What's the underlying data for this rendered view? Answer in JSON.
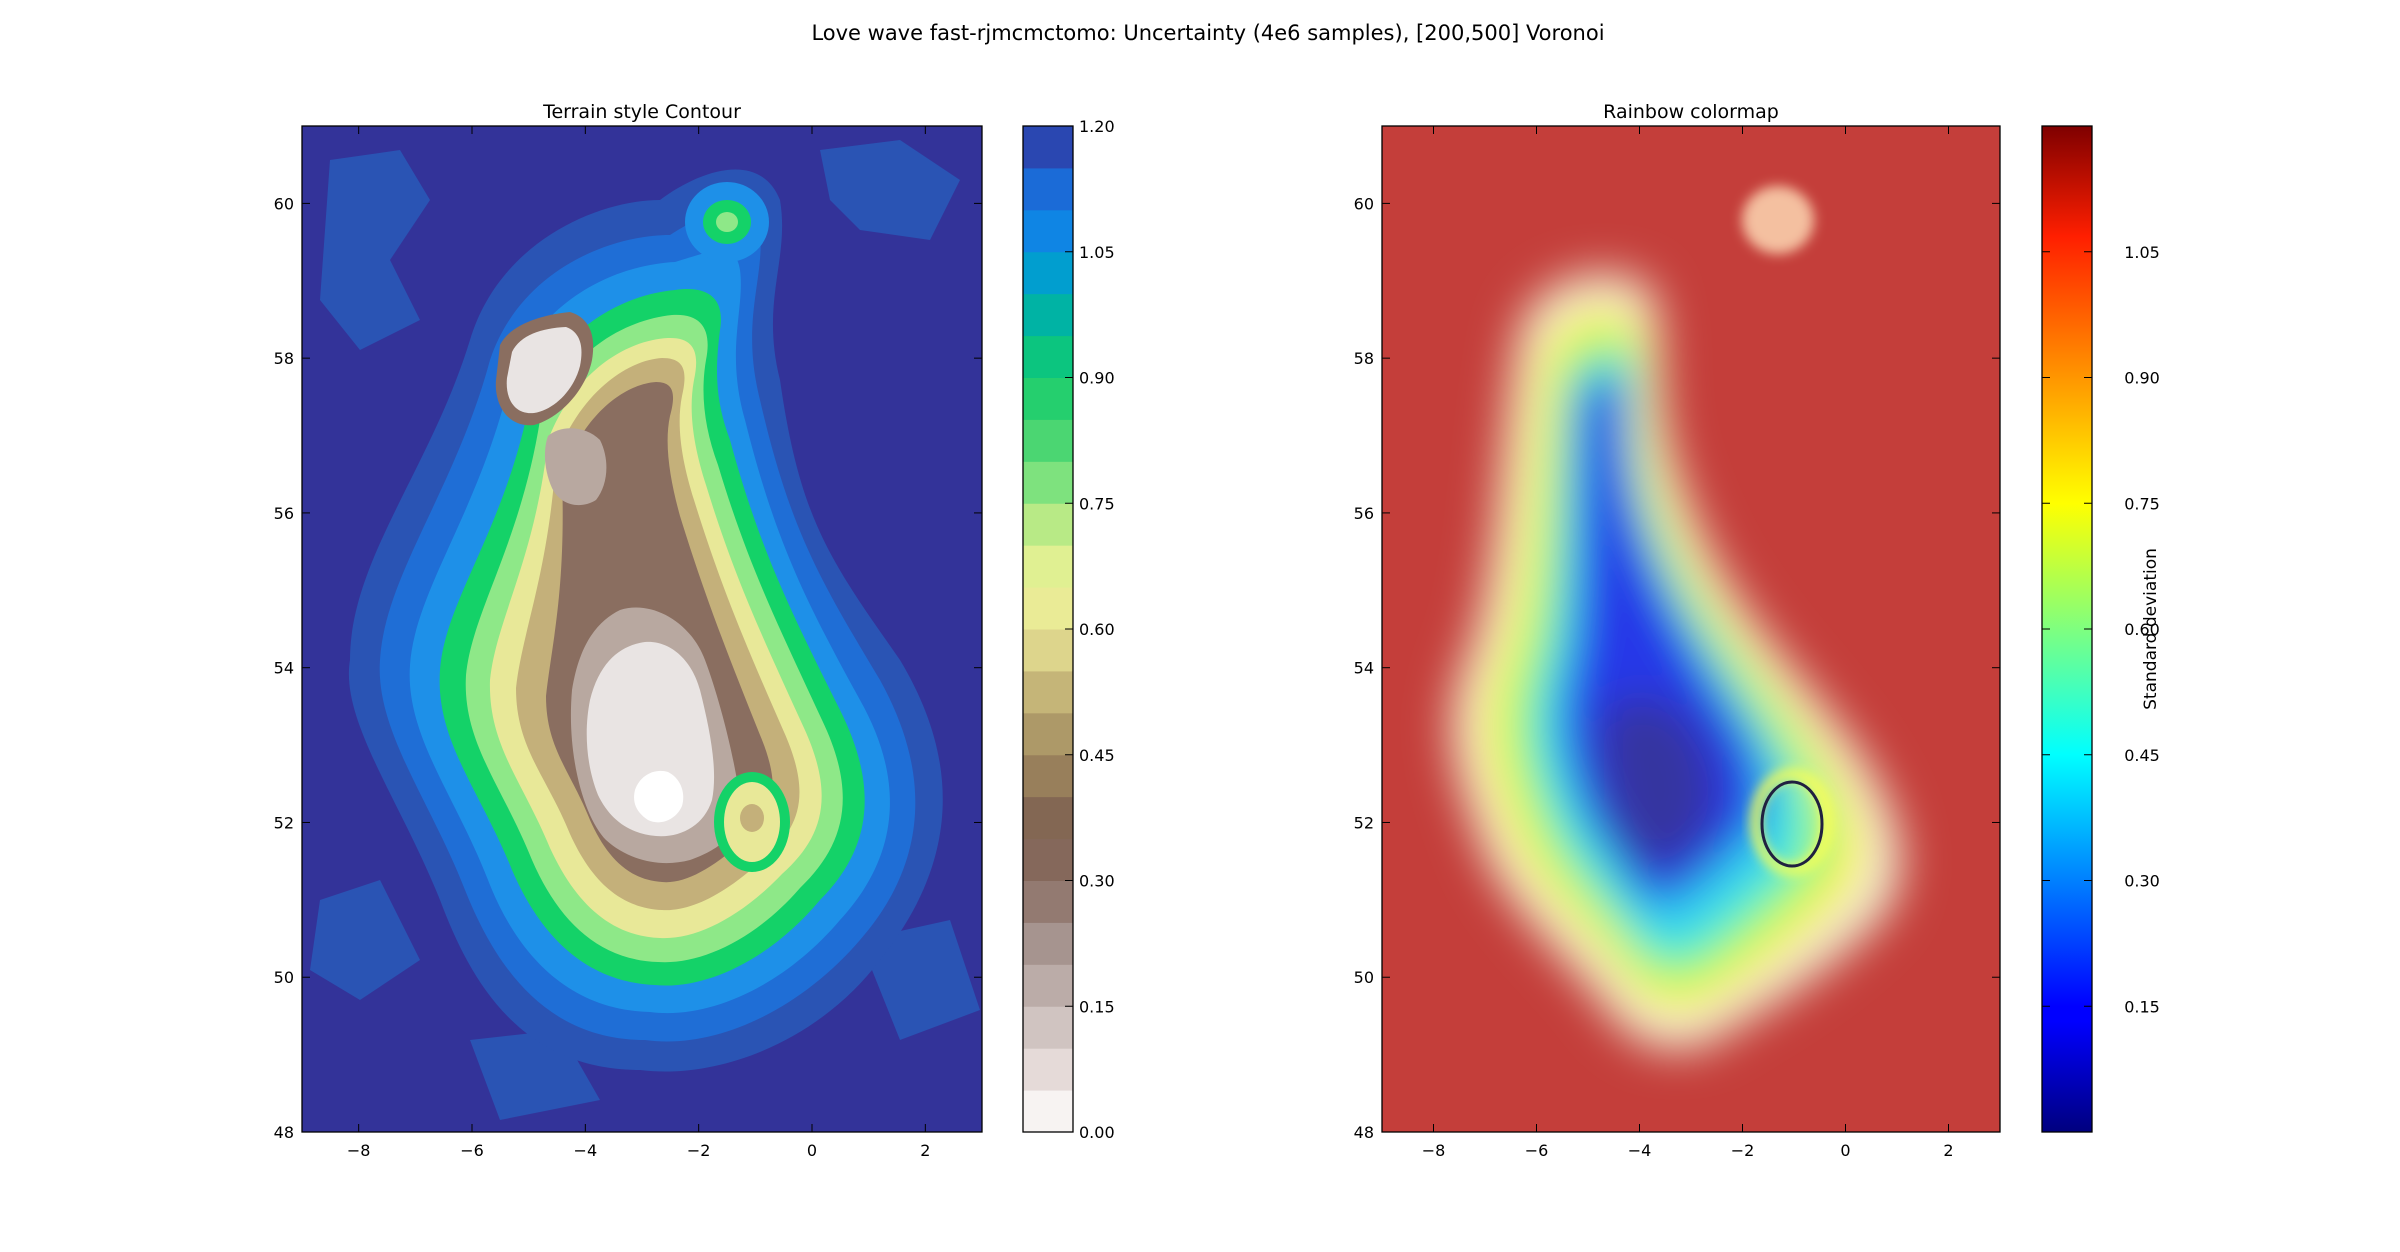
{
  "figure": {
    "suptitle": "Love wave fast-rjmcmctomo: Uncertainty (4e6 samples), [200,500] Voronoi"
  },
  "chart_data": [
    {
      "type": "heatmap",
      "variant": "filled-contour",
      "title": "Terrain style Contour",
      "xlim": [
        -9,
        3
      ],
      "ylim": [
        48,
        61
      ],
      "xticks": [
        -8,
        -6,
        -4,
        -2,
        0,
        2
      ],
      "xtick_labels": [
        "−8",
        "−6",
        "−4",
        "−2",
        "0",
        "2"
      ],
      "yticks": [
        48,
        50,
        52,
        54,
        56,
        58,
        60
      ],
      "ytick_labels": [
        "48",
        "50",
        "52",
        "54",
        "56",
        "58",
        "60"
      ],
      "colormap": "terrain",
      "colorbar": {
        "label": "",
        "range": [
          0.0,
          1.2
        ],
        "levels": 24,
        "ticks": [
          0.0,
          0.15,
          0.3,
          0.45,
          0.6,
          0.75,
          0.9,
          1.05,
          1.2
        ],
        "tick_labels": [
          "0.00",
          "0.15",
          "0.30",
          "0.45",
          "0.60",
          "0.75",
          "0.90",
          "1.05",
          "1.20"
        ]
      },
      "background_value": 1.2,
      "regions": [
        {
          "lon": -3.3,
          "lat": 52.0,
          "value": 0.05,
          "rx": 1.5,
          "ry": 1.6
        },
        {
          "lon": -4.2,
          "lat": 57.7,
          "value": 0.15,
          "rx": 0.7,
          "ry": 0.7
        },
        {
          "lon": -4.0,
          "lat": 55.2,
          "value": 0.35,
          "rx": 0.9,
          "ry": 1.8
        },
        {
          "lon": -1.6,
          "lat": 59.7,
          "value": 0.85,
          "rx": 0.6,
          "ry": 0.6
        },
        {
          "lon": -0.9,
          "lat": 51.9,
          "value": 0.8,
          "rx": 0.5,
          "ry": 0.7
        }
      ]
    },
    {
      "type": "heatmap",
      "variant": "shaded",
      "title": "Rainbow colormap",
      "xlim": [
        -9,
        3
      ],
      "ylim": [
        48,
        61
      ],
      "xticks": [
        -8,
        -6,
        -4,
        -2,
        0,
        2
      ],
      "xtick_labels": [
        "−8",
        "−6",
        "−4",
        "−2",
        "0",
        "2"
      ],
      "yticks": [
        48,
        50,
        52,
        54,
        56,
        58,
        60
      ],
      "ytick_labels": [
        "48",
        "50",
        "52",
        "54",
        "56",
        "58",
        "60"
      ],
      "colormap": "jet",
      "colorbar": {
        "label": "Standard deviation",
        "range": [
          0.0,
          1.2
        ],
        "ticks": [
          0.15,
          0.3,
          0.45,
          0.6,
          0.75,
          0.9,
          1.05
        ],
        "tick_labels": [
          "0.15",
          "0.30",
          "0.45",
          "0.60",
          "0.75",
          "0.90",
          "1.05"
        ]
      },
      "background_value": 1.1
    }
  ]
}
